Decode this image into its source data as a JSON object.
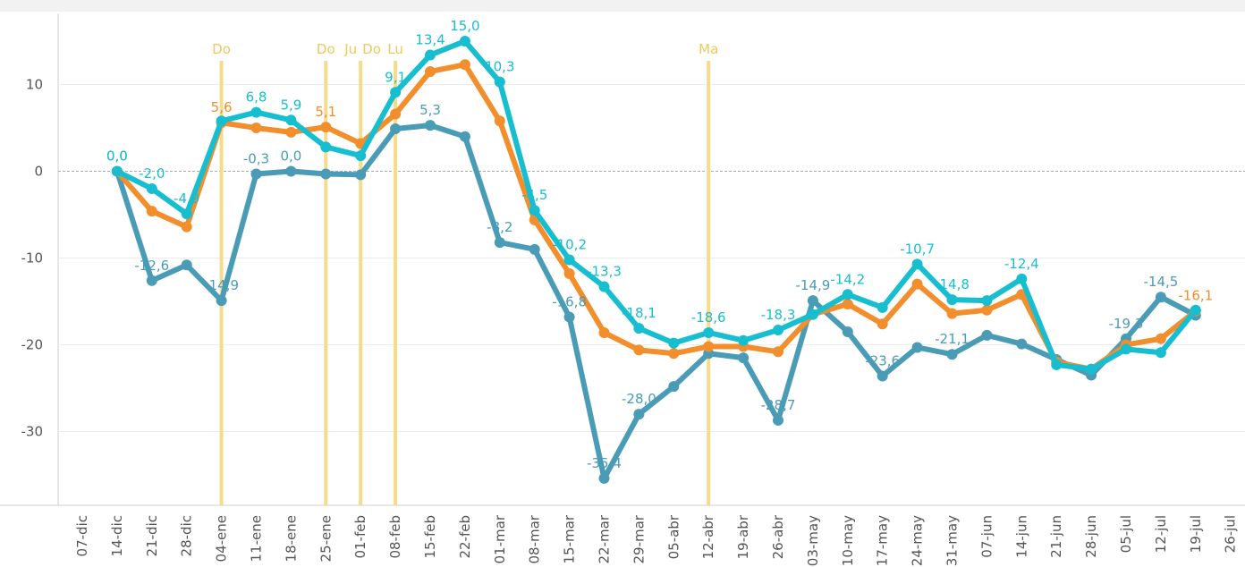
{
  "chart_data": {
    "type": "line",
    "categories": [
      "07-dic",
      "14-dic",
      "21-dic",
      "28-dic",
      "04-ene",
      "11-ene",
      "18-ene",
      "25-ene",
      "01-feb",
      "08-feb",
      "15-feb",
      "22-feb",
      "01-mar",
      "08-mar",
      "15-mar",
      "22-mar",
      "29-mar",
      "05-abr",
      "12-abr",
      "19-abr",
      "26-abr",
      "03-may",
      "10-may",
      "17-may",
      "24-may",
      "31-may",
      "07-jun",
      "14-jun",
      "21-jun",
      "28-jun",
      "05-jul",
      "12-jul",
      "19-jul",
      "26-jul"
    ],
    "series": [
      {
        "color": "#4a9bb6",
        "values": [
          null,
          0,
          -12.6,
          -10.8,
          -14.9,
          -0.3,
          0.0,
          -0.3,
          -0.4,
          4.9,
          5.3,
          4.0,
          -8.2,
          -9.0,
          -16.8,
          -35.4,
          -28.0,
          -24.8,
          -21.0,
          -21.5,
          -28.7,
          -14.9,
          -18.5,
          -23.6,
          -20.3,
          -21.1,
          -18.9,
          -19.9,
          -21.7,
          -23.5,
          -19.3,
          -14.5,
          -16.6,
          null
        ],
        "value_labels": [
          null,
          "0,0",
          "-12,6",
          null,
          "-14,9",
          "-0,3",
          "0,0",
          null,
          null,
          null,
          "5,3",
          null,
          "-8,2",
          null,
          "-16,8",
          "-35,4",
          "-28,0",
          null,
          null,
          null,
          "-28,7",
          "-14,9",
          null,
          "-23,6",
          null,
          "-21,1",
          null,
          null,
          null,
          null,
          "-19,3",
          "-14,5",
          null,
          null
        ]
      },
      {
        "color": "#f28e2b",
        "values": [
          null,
          0,
          -4.6,
          -6.4,
          5.6,
          5.0,
          4.5,
          5.1,
          3.2,
          6.6,
          11.5,
          12.3,
          5.8,
          -5.6,
          -11.8,
          -18.6,
          -20.6,
          -21.0,
          -20.2,
          -20.2,
          -20.8,
          -16.5,
          -15.3,
          -17.6,
          -13.0,
          -16.4,
          -16.0,
          -14.2,
          -22.0,
          -22.8,
          -20.0,
          -19.3,
          -16.1,
          null
        ],
        "value_labels": [
          null,
          null,
          null,
          null,
          "5,6",
          null,
          null,
          "5,1",
          null,
          null,
          null,
          null,
          null,
          null,
          null,
          null,
          null,
          null,
          null,
          null,
          null,
          null,
          null,
          null,
          null,
          null,
          null,
          null,
          null,
          null,
          null,
          null,
          "-16,1",
          null
        ]
      },
      {
        "color": "#17bed0",
        "values": [
          null,
          0,
          -2.0,
          -4.9,
          5.8,
          6.8,
          5.9,
          2.8,
          1.8,
          9.1,
          13.4,
          15.0,
          10.3,
          -4.5,
          -10.2,
          -13.3,
          -18.1,
          -19.8,
          -18.6,
          -19.5,
          -18.3,
          -16.5,
          -14.2,
          -15.7,
          -10.7,
          -14.8,
          -14.9,
          -12.4,
          -22.3,
          -22.8,
          -20.5,
          -20.9,
          -16.0,
          null
        ],
        "value_labels": [
          null,
          "0,0",
          "-2,0",
          "-4,9",
          null,
          "6,8",
          "5,9",
          null,
          null,
          "9,1",
          "13,4",
          "15,0",
          "10,3",
          "-4,5",
          "-10,2",
          "-13,3",
          "-18,1",
          null,
          "-18,6",
          null,
          "-18,3",
          null,
          "-14,2",
          null,
          "-10,7",
          "-14,8",
          null,
          "-12,4",
          null,
          null,
          null,
          null,
          null,
          null
        ]
      }
    ],
    "ylim": [
      -38.5,
      18.2
    ],
    "yticks": [
      -30,
      -20,
      -10,
      0,
      10
    ],
    "grid": true,
    "annotations": [
      {
        "x": "04-ene",
        "label": "Do"
      },
      {
        "x": "25-ene",
        "label": "Do"
      },
      {
        "x": "01-feb",
        "label": "Ju"
      },
      {
        "x": "01-feb",
        "label": "Do"
      },
      {
        "x": "08-feb",
        "label": "Lu"
      },
      {
        "x": "12-abr",
        "label": "Ma"
      }
    ],
    "annotation_color": "#f5dc8c"
  }
}
